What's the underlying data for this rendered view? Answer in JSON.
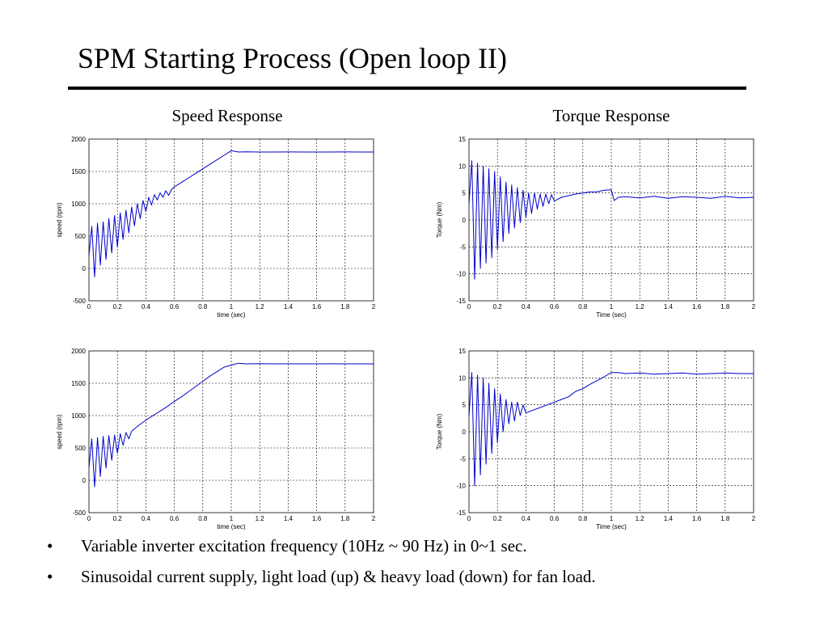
{
  "slide": {
    "title": "SPM Starting Process (Open loop II)",
    "left_heading": "Speed Response",
    "right_heading": "Torque Response",
    "bullets": [
      "Variable inverter excitation frequency (10Hz ~ 90 Hz) in 0~1 sec.",
      "Sinusoidal current supply, light load (up) & heavy load (down) for fan load."
    ],
    "bullet_symbol": "•"
  },
  "colors": {
    "trace": "#0000cc",
    "grid": "#000000",
    "axis": "#000000"
  },
  "chart_data": [
    {
      "type": "line",
      "panel": "speed-light-load",
      "xlabel": "time (sec)",
      "ylabel": "speed (rpm)",
      "xlim": [
        0,
        2
      ],
      "ylim": [
        -500,
        2000
      ],
      "xticks": [
        0,
        0.2,
        0.4,
        0.6,
        0.8,
        1,
        1.2,
        1.4,
        1.6,
        1.8,
        2
      ],
      "xtick_labels": [
        "0",
        "0.2",
        "0.4",
        "0.6",
        "0.8",
        "1",
        "1.2",
        "1.4",
        "1.6",
        "1.8",
        "2"
      ],
      "yticks": [
        -500,
        0,
        500,
        1000,
        1500,
        2000
      ],
      "ytick_labels": [
        "-500",
        "0",
        "500",
        "1000",
        "1500",
        "2000"
      ],
      "grid": true,
      "x": [
        0,
        0.02,
        0.04,
        0.06,
        0.08,
        0.1,
        0.12,
        0.14,
        0.16,
        0.18,
        0.2,
        0.22,
        0.24,
        0.26,
        0.28,
        0.3,
        0.32,
        0.34,
        0.36,
        0.38,
        0.4,
        0.42,
        0.44,
        0.46,
        0.48,
        0.5,
        0.52,
        0.54,
        0.56,
        0.58,
        0.6,
        0.65,
        0.7,
        0.75,
        0.8,
        0.85,
        0.9,
        0.95,
        1.0,
        1.05,
        1.1,
        1.2,
        1.3,
        1.4,
        1.5,
        1.6,
        1.7,
        1.8,
        1.9,
        2.0
      ],
      "y": [
        200,
        650,
        -130,
        700,
        50,
        720,
        140,
        770,
        240,
        820,
        330,
        860,
        450,
        900,
        550,
        950,
        660,
        1000,
        770,
        1050,
        880,
        1100,
        980,
        1140,
        1060,
        1170,
        1100,
        1200,
        1130,
        1220,
        1260,
        1330,
        1400,
        1470,
        1540,
        1610,
        1680,
        1750,
        1820,
        1800,
        1802,
        1800,
        1800,
        1801,
        1800,
        1800,
        1800,
        1801,
        1800,
        1800
      ]
    },
    {
      "type": "line",
      "panel": "torque-light-load",
      "xlabel": "Time (sec)",
      "ylabel": "Torque (Nm)",
      "xlim": [
        0,
        2
      ],
      "ylim": [
        -15,
        15
      ],
      "xticks": [
        0,
        0.2,
        0.4,
        0.6,
        0.8,
        1,
        1.2,
        1.4,
        1.6,
        1.8,
        2
      ],
      "xtick_labels": [
        "0",
        "0.2",
        "0.4",
        "0.6",
        "0.8",
        "1",
        "1.2",
        "1.4",
        "1.6",
        "1.8",
        "2"
      ],
      "yticks": [
        -15,
        -10,
        -5,
        0,
        5,
        10,
        15
      ],
      "ytick_labels": [
        "-15",
        "-10",
        "-5",
        "0",
        "5",
        "10",
        "15"
      ],
      "grid": true,
      "x": [
        0,
        0.02,
        0.04,
        0.06,
        0.08,
        0.1,
        0.12,
        0.14,
        0.16,
        0.18,
        0.2,
        0.22,
        0.24,
        0.26,
        0.28,
        0.3,
        0.32,
        0.34,
        0.36,
        0.38,
        0.4,
        0.42,
        0.44,
        0.46,
        0.48,
        0.5,
        0.52,
        0.54,
        0.56,
        0.58,
        0.6,
        0.65,
        0.7,
        0.75,
        0.8,
        0.85,
        0.9,
        0.95,
        1.0,
        1.02,
        1.05,
        1.1,
        1.2,
        1.3,
        1.4,
        1.5,
        1.6,
        1.7,
        1.8,
        1.9,
        2.0
      ],
      "y": [
        3,
        11,
        -11,
        10.5,
        -9,
        10,
        -8,
        9.5,
        -7,
        9,
        -5.5,
        8,
        -4,
        7,
        -2.5,
        6.5,
        -1.5,
        6,
        -0.5,
        5.5,
        0.5,
        5,
        1.2,
        5,
        2,
        4.8,
        2.5,
        4.8,
        3,
        4.7,
        3.5,
        4.2,
        4.5,
        4.8,
        5,
        5.2,
        5.2,
        5.5,
        5.6,
        3.6,
        4.2,
        4.3,
        4.1,
        4.4,
        4.0,
        4.3,
        4.2,
        4.0,
        4.4,
        4.1,
        4.2
      ]
    },
    {
      "type": "line",
      "panel": "speed-heavy-load",
      "xlabel": "time (sec)",
      "ylabel": "speed (rpm)",
      "xlim": [
        0,
        2
      ],
      "ylim": [
        -500,
        2000
      ],
      "xticks": [
        0,
        0.2,
        0.4,
        0.6,
        0.8,
        1,
        1.2,
        1.4,
        1.6,
        1.8,
        2
      ],
      "xtick_labels": [
        "0",
        "0.2",
        "0.4",
        "0.6",
        "0.8",
        "1",
        "1.2",
        "1.4",
        "1.6",
        "1.8",
        "2"
      ],
      "yticks": [
        -500,
        0,
        500,
        1000,
        1500,
        2000
      ],
      "ytick_labels": [
        "-500",
        "0",
        "500",
        "1000",
        "1500",
        "2000"
      ],
      "grid": true,
      "x": [
        0,
        0.02,
        0.04,
        0.06,
        0.08,
        0.1,
        0.12,
        0.14,
        0.16,
        0.18,
        0.2,
        0.22,
        0.24,
        0.26,
        0.28,
        0.3,
        0.35,
        0.4,
        0.45,
        0.5,
        0.55,
        0.6,
        0.65,
        0.7,
        0.75,
        0.8,
        0.85,
        0.9,
        0.95,
        1.0,
        1.05,
        1.1,
        1.2,
        1.3,
        1.4,
        1.5,
        1.6,
        1.7,
        1.8,
        1.9,
        2.0
      ],
      "y": [
        200,
        640,
        -100,
        660,
        60,
        680,
        190,
        690,
        310,
        700,
        420,
        720,
        540,
        740,
        640,
        760,
        850,
        930,
        1000,
        1070,
        1140,
        1220,
        1290,
        1370,
        1450,
        1530,
        1610,
        1680,
        1750,
        1780,
        1810,
        1800,
        1802,
        1800,
        1801,
        1800,
        1800,
        1801,
        1800,
        1800,
        1800
      ]
    },
    {
      "type": "line",
      "panel": "torque-heavy-load",
      "xlabel": "Time (sec)",
      "ylabel": "Torque (Nm)",
      "xlim": [
        0,
        2
      ],
      "ylim": [
        -15,
        15
      ],
      "xticks": [
        0,
        0.2,
        0.4,
        0.6,
        0.8,
        1,
        1.2,
        1.4,
        1.6,
        1.8,
        2
      ],
      "xtick_labels": [
        "0",
        "0.2",
        "0.4",
        "0.6",
        "0.8",
        "1",
        "1.2",
        "1.4",
        "1.6",
        "1.8",
        "2"
      ],
      "yticks": [
        -15,
        -10,
        -5,
        0,
        5,
        10,
        15
      ],
      "ytick_labels": [
        "-15",
        "-10",
        "-5",
        "0",
        "5",
        "10",
        "15"
      ],
      "grid": true,
      "x": [
        0,
        0.02,
        0.04,
        0.06,
        0.08,
        0.1,
        0.12,
        0.14,
        0.16,
        0.18,
        0.2,
        0.22,
        0.24,
        0.26,
        0.28,
        0.3,
        0.32,
        0.34,
        0.36,
        0.38,
        0.4,
        0.45,
        0.5,
        0.55,
        0.6,
        0.65,
        0.7,
        0.75,
        0.8,
        0.85,
        0.9,
        0.95,
        1.0,
        1.05,
        1.1,
        1.2,
        1.3,
        1.4,
        1.5,
        1.6,
        1.7,
        1.8,
        1.9,
        2.0
      ],
      "y": [
        3,
        11,
        -10,
        10.5,
        -8,
        10,
        -6,
        9,
        -4,
        8,
        -2,
        7,
        0,
        6,
        1.5,
        5.5,
        2,
        5.5,
        3,
        5,
        3.5,
        4,
        4.5,
        5,
        5.5,
        6,
        6.5,
        7.5,
        8,
        8.8,
        9.5,
        10.2,
        11,
        11,
        10.8,
        10.9,
        10.7,
        10.8,
        10.9,
        10.7,
        10.8,
        10.9,
        10.8,
        10.8
      ]
    }
  ]
}
